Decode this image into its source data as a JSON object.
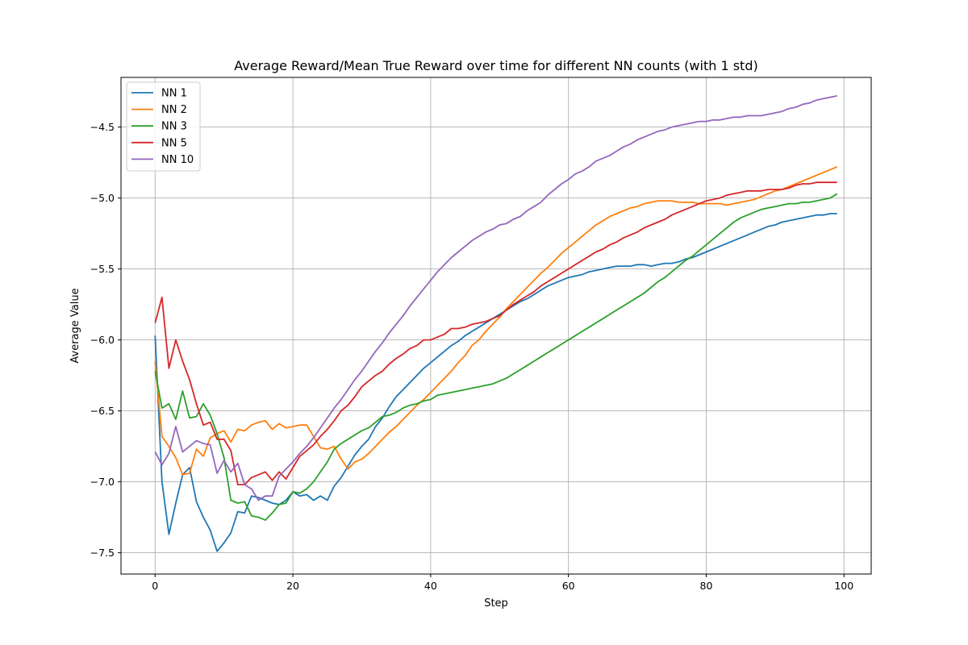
{
  "chart_data": {
    "type": "line",
    "title": "Average Reward/Mean True Reward over time for different NN counts (with 1 std)",
    "xlabel": "Step",
    "ylabel": "Average Value",
    "xlim": [
      -4.95,
      103.95
    ],
    "ylim": [
      -7.65,
      -4.15
    ],
    "xticks": [
      0,
      20,
      40,
      60,
      80,
      100
    ],
    "yticks": [
      -7.5,
      -7.0,
      -6.5,
      -6.0,
      -5.5,
      -5.0,
      -4.5
    ],
    "xtick_labels": [
      "0",
      "20",
      "40",
      "60",
      "80",
      "100"
    ],
    "ytick_labels": [
      "−7.5",
      "−7.0",
      "−6.5",
      "−6.0",
      "−5.5",
      "−5.0",
      "−4.5"
    ],
    "grid": true,
    "legend_position": "upper-left",
    "x": [
      0,
      1,
      2,
      3,
      4,
      5,
      6,
      7,
      8,
      9,
      10,
      11,
      12,
      13,
      14,
      15,
      16,
      17,
      18,
      19,
      20,
      21,
      22,
      23,
      24,
      25,
      26,
      27,
      28,
      29,
      30,
      31,
      32,
      33,
      34,
      35,
      36,
      37,
      38,
      39,
      40,
      41,
      42,
      43,
      44,
      45,
      46,
      47,
      48,
      49,
      50,
      51,
      52,
      53,
      54,
      55,
      56,
      57,
      58,
      59,
      60,
      61,
      62,
      63,
      64,
      65,
      66,
      67,
      68,
      69,
      70,
      71,
      72,
      73,
      74,
      75,
      76,
      77,
      78,
      79,
      80,
      81,
      82,
      83,
      84,
      85,
      86,
      87,
      88,
      89,
      90,
      91,
      92,
      93,
      94,
      95,
      96,
      97,
      98,
      99
    ],
    "series": [
      {
        "name": "NN 1",
        "color": "#1f77b4",
        "values": [
          -5.97,
          -7.0,
          -7.37,
          -7.15,
          -6.95,
          -6.9,
          -7.14,
          -7.25,
          -7.34,
          -7.49,
          -7.43,
          -7.36,
          -7.21,
          -7.22,
          -7.1,
          -7.11,
          -7.13,
          -7.15,
          -7.16,
          -7.13,
          -7.07,
          -7.1,
          -7.09,
          -7.13,
          -7.1,
          -7.13,
          -7.03,
          -6.97,
          -6.89,
          -6.81,
          -6.75,
          -6.7,
          -6.61,
          -6.55,
          -6.47,
          -6.4,
          -6.35,
          -6.3,
          -6.25,
          -6.2,
          -6.16,
          -6.12,
          -6.08,
          -6.04,
          -6.01,
          -5.97,
          -5.94,
          -5.91,
          -5.88,
          -5.85,
          -5.82,
          -5.79,
          -5.76,
          -5.73,
          -5.71,
          -5.68,
          -5.65,
          -5.62,
          -5.6,
          -5.58,
          -5.56,
          -5.55,
          -5.54,
          -5.52,
          -5.51,
          -5.5,
          -5.49,
          -5.48,
          -5.48,
          -5.48,
          -5.47,
          -5.47,
          -5.48,
          -5.47,
          -5.46,
          -5.46,
          -5.45,
          -5.43,
          -5.42,
          -5.4,
          -5.38,
          -5.36,
          -5.34,
          -5.32,
          -5.3,
          -5.28,
          -5.26,
          -5.24,
          -5.22,
          -5.2,
          -5.19,
          -5.17,
          -5.16,
          -5.15,
          -5.14,
          -5.13,
          -5.12,
          -5.12,
          -5.11,
          -5.11
        ]
      },
      {
        "name": "NN 2",
        "color": "#ff7f0e",
        "values": [
          -6.15,
          -6.68,
          -6.75,
          -6.83,
          -6.95,
          -6.94,
          -6.77,
          -6.82,
          -6.69,
          -6.66,
          -6.64,
          -6.72,
          -6.63,
          -6.64,
          -6.6,
          -6.58,
          -6.57,
          -6.63,
          -6.59,
          -6.62,
          -6.61,
          -6.6,
          -6.6,
          -6.68,
          -6.76,
          -6.77,
          -6.75,
          -6.84,
          -6.91,
          -6.86,
          -6.84,
          -6.8,
          -6.75,
          -6.7,
          -6.65,
          -6.61,
          -6.56,
          -6.51,
          -6.46,
          -6.42,
          -6.37,
          -6.32,
          -6.27,
          -6.22,
          -6.16,
          -6.11,
          -6.04,
          -6.0,
          -5.94,
          -5.89,
          -5.84,
          -5.78,
          -5.73,
          -5.68,
          -5.63,
          -5.58,
          -5.53,
          -5.49,
          -5.44,
          -5.39,
          -5.35,
          -5.31,
          -5.27,
          -5.23,
          -5.19,
          -5.16,
          -5.13,
          -5.11,
          -5.09,
          -5.07,
          -5.06,
          -5.04,
          -5.03,
          -5.02,
          -5.02,
          -5.02,
          -5.03,
          -5.03,
          -5.03,
          -5.04,
          -5.04,
          -5.04,
          -5.04,
          -5.05,
          -5.04,
          -5.03,
          -5.02,
          -5.01,
          -4.99,
          -4.97,
          -4.95,
          -4.94,
          -4.92,
          -4.9,
          -4.88,
          -4.86,
          -4.84,
          -4.82,
          -4.8,
          -4.78
        ]
      },
      {
        "name": "NN 3",
        "color": "#2ca02c",
        "values": [
          -6.22,
          -6.48,
          -6.45,
          -6.56,
          -6.36,
          -6.55,
          -6.54,
          -6.45,
          -6.53,
          -6.66,
          -6.83,
          -7.13,
          -7.15,
          -7.14,
          -7.24,
          -7.25,
          -7.27,
          -7.22,
          -7.16,
          -7.15,
          -7.07,
          -7.08,
          -7.05,
          -7.0,
          -6.93,
          -6.86,
          -6.77,
          -6.73,
          -6.7,
          -6.67,
          -6.64,
          -6.62,
          -6.58,
          -6.54,
          -6.53,
          -6.51,
          -6.48,
          -6.46,
          -6.45,
          -6.43,
          -6.42,
          -6.39,
          -6.38,
          -6.37,
          -6.36,
          -6.35,
          -6.34,
          -6.33,
          -6.32,
          -6.31,
          -6.29,
          -6.27,
          -6.24,
          -6.21,
          -6.18,
          -6.15,
          -6.12,
          -6.09,
          -6.06,
          -6.03,
          -6.0,
          -5.97,
          -5.94,
          -5.91,
          -5.88,
          -5.85,
          -5.82,
          -5.79,
          -5.76,
          -5.73,
          -5.7,
          -5.67,
          -5.63,
          -5.59,
          -5.56,
          -5.52,
          -5.48,
          -5.44,
          -5.41,
          -5.37,
          -5.33,
          -5.29,
          -5.25,
          -5.21,
          -5.17,
          -5.14,
          -5.12,
          -5.1,
          -5.08,
          -5.07,
          -5.06,
          -5.05,
          -5.04,
          -5.04,
          -5.03,
          -5.03,
          -5.02,
          -5.01,
          -5.0,
          -4.97
        ]
      },
      {
        "name": "NN 5",
        "color": "#d62728",
        "values": [
          -5.88,
          -5.7,
          -6.2,
          -6.0,
          -6.15,
          -6.28,
          -6.45,
          -6.6,
          -6.58,
          -6.7,
          -6.7,
          -6.78,
          -7.02,
          -7.02,
          -6.97,
          -6.95,
          -6.93,
          -6.99,
          -6.93,
          -6.98,
          -6.9,
          -6.82,
          -6.78,
          -6.74,
          -6.68,
          -6.63,
          -6.57,
          -6.5,
          -6.46,
          -6.4,
          -6.33,
          -6.29,
          -6.25,
          -6.22,
          -6.17,
          -6.13,
          -6.1,
          -6.06,
          -6.04,
          -6.0,
          -6.0,
          -5.98,
          -5.96,
          -5.92,
          -5.92,
          -5.91,
          -5.89,
          -5.88,
          -5.87,
          -5.85,
          -5.83,
          -5.79,
          -5.75,
          -5.72,
          -5.69,
          -5.66,
          -5.62,
          -5.59,
          -5.56,
          -5.53,
          -5.5,
          -5.47,
          -5.44,
          -5.41,
          -5.38,
          -5.36,
          -5.33,
          -5.31,
          -5.28,
          -5.26,
          -5.24,
          -5.21,
          -5.19,
          -5.17,
          -5.15,
          -5.12,
          -5.1,
          -5.08,
          -5.06,
          -5.04,
          -5.02,
          -5.01,
          -5.0,
          -4.98,
          -4.97,
          -4.96,
          -4.95,
          -4.95,
          -4.95,
          -4.94,
          -4.94,
          -4.94,
          -4.93,
          -4.91,
          -4.9,
          -4.9,
          -4.89,
          -4.89,
          -4.89,
          -4.89
        ]
      },
      {
        "name": "NN 10",
        "color": "#9467bd",
        "values": [
          -6.79,
          -6.88,
          -6.8,
          -6.61,
          -6.79,
          -6.75,
          -6.71,
          -6.73,
          -6.74,
          -6.94,
          -6.85,
          -6.93,
          -6.87,
          -7.02,
          -7.05,
          -7.13,
          -7.1,
          -7.1,
          -6.96,
          -6.91,
          -6.86,
          -6.8,
          -6.75,
          -6.69,
          -6.62,
          -6.55,
          -6.48,
          -6.42,
          -6.35,
          -6.28,
          -6.22,
          -6.15,
          -6.08,
          -6.02,
          -5.95,
          -5.89,
          -5.83,
          -5.76,
          -5.7,
          -5.64,
          -5.58,
          -5.52,
          -5.47,
          -5.42,
          -5.38,
          -5.34,
          -5.3,
          -5.27,
          -5.24,
          -5.22,
          -5.19,
          -5.18,
          -5.15,
          -5.13,
          -5.09,
          -5.06,
          -5.03,
          -4.98,
          -4.94,
          -4.9,
          -4.87,
          -4.83,
          -4.81,
          -4.78,
          -4.74,
          -4.72,
          -4.7,
          -4.67,
          -4.64,
          -4.62,
          -4.59,
          -4.57,
          -4.55,
          -4.53,
          -4.52,
          -4.5,
          -4.49,
          -4.48,
          -4.47,
          -4.46,
          -4.46,
          -4.45,
          -4.45,
          -4.44,
          -4.43,
          -4.43,
          -4.42,
          -4.42,
          -4.42,
          -4.41,
          -4.4,
          -4.39,
          -4.37,
          -4.36,
          -4.34,
          -4.33,
          -4.31,
          -4.3,
          -4.29,
          -4.28
        ]
      }
    ]
  }
}
